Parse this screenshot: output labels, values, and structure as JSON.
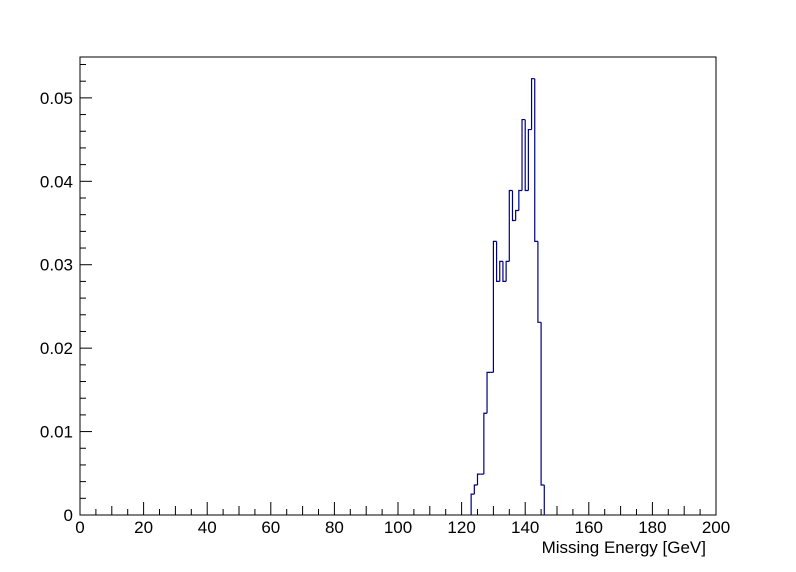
{
  "chart_data": {
    "type": "histogram",
    "x_label": "Missing Energy [GeV]",
    "bins": [
      123,
      124,
      125,
      126,
      127,
      128,
      129,
      130,
      131,
      132,
      133,
      134,
      135,
      136,
      137,
      138,
      139,
      140,
      141,
      142,
      143,
      144,
      145,
      146
    ],
    "counts": [
      0.0025,
      0.0036,
      0.0049,
      0.0049,
      0.0122,
      0.0171,
      0.0171,
      0.0328,
      0.028,
      0.0304,
      0.028,
      0.0304,
      0.0389,
      0.0353,
      0.0365,
      0.0389,
      0.0474,
      0.0389,
      0.0462,
      0.0523,
      0.0328,
      0.0231,
      0.0036
    ],
    "color": "#000080",
    "xlim": [
      0,
      200
    ],
    "xticks": [
      0,
      20,
      40,
      60,
      80,
      100,
      120,
      140,
      160,
      180,
      200
    ],
    "ylim": [
      0,
      0.0549
    ],
    "yticks": [
      0,
      0.01,
      0.02,
      0.03,
      0.04,
      0.05
    ]
  }
}
